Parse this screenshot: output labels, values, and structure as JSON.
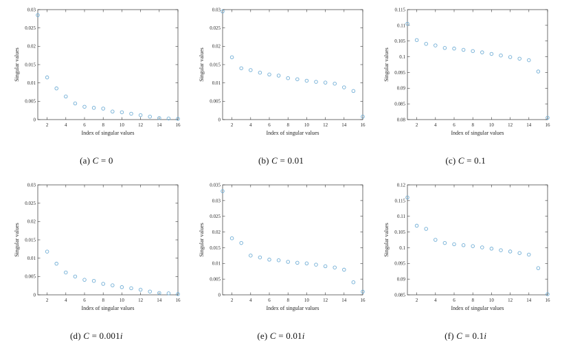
{
  "style": {
    "marker_color": "#6fadd5",
    "axis_color": "#333333",
    "text_color": "#262626",
    "background": "#ffffff"
  },
  "chart_data": [
    {
      "id": "a",
      "type": "scatter",
      "caption": [
        {
          "t": "(a) "
        },
        {
          "t": "C",
          "i": true
        },
        {
          "t": " = 0"
        }
      ],
      "xlabel": "Index of singular values",
      "ylabel": "Singular values",
      "xlim": [
        1,
        16
      ],
      "ylim": [
        0,
        0.03
      ],
      "xticks": [
        2,
        4,
        6,
        8,
        10,
        12,
        14,
        16
      ],
      "yticks": [
        0,
        0.005,
        0.01,
        0.015,
        0.02,
        0.025,
        0.03
      ],
      "ytick_labels": [
        "0",
        "0.005",
        "0.01",
        "0.015",
        "0.02",
        "0.025",
        "0.03"
      ],
      "x": [
        1,
        2,
        3,
        4,
        5,
        6,
        7,
        8,
        9,
        10,
        11,
        12,
        13,
        14,
        15,
        16
      ],
      "y": [
        0.0285,
        0.0115,
        0.0085,
        0.0063,
        0.0044,
        0.0035,
        0.0032,
        0.003,
        0.0022,
        0.002,
        0.0016,
        0.0012,
        0.0008,
        0.0004,
        0.0003,
        0.0002
      ],
      "grid": false,
      "legend": null
    },
    {
      "id": "b",
      "type": "scatter",
      "caption": [
        {
          "t": "(b) "
        },
        {
          "t": "C",
          "i": true
        },
        {
          "t": " = 0.01"
        }
      ],
      "xlabel": "Index of singular values",
      "ylabel": "Singular values",
      "xlim": [
        1,
        16
      ],
      "ylim": [
        0,
        0.03
      ],
      "xticks": [
        2,
        4,
        6,
        8,
        10,
        12,
        14,
        16
      ],
      "yticks": [
        0,
        0.005,
        0.01,
        0.015,
        0.02,
        0.025,
        0.03
      ],
      "ytick_labels": [
        "0",
        "0.005",
        "0.01",
        "0.015",
        "0.02",
        "0.025",
        "0.03"
      ],
      "x": [
        1,
        2,
        3,
        4,
        5,
        6,
        7,
        8,
        9,
        10,
        11,
        12,
        13,
        14,
        15,
        16
      ],
      "y": [
        0.0295,
        0.017,
        0.014,
        0.0135,
        0.0128,
        0.0123,
        0.012,
        0.0113,
        0.011,
        0.0106,
        0.0103,
        0.0101,
        0.0098,
        0.0088,
        0.0078,
        0.0008
      ],
      "grid": false,
      "legend": null
    },
    {
      "id": "c",
      "type": "scatter",
      "caption": [
        {
          "t": "(c) "
        },
        {
          "t": "C",
          "i": true
        },
        {
          "t": " = 0.1"
        }
      ],
      "xlabel": "Index of singular values",
      "ylabel": "Singular values",
      "xlim": [
        1,
        16
      ],
      "ylim": [
        0.08,
        0.115
      ],
      "xticks": [
        2,
        4,
        6,
        8,
        10,
        12,
        14,
        16
      ],
      "yticks": [
        0.08,
        0.085,
        0.09,
        0.095,
        0.1,
        0.105,
        0.11,
        0.115
      ],
      "ytick_labels": [
        "0.08",
        "0.085",
        "0.09",
        "0.095",
        "0.1",
        "0.105",
        "0.11",
        "0.115"
      ],
      "x": [
        1,
        2,
        3,
        4,
        5,
        6,
        7,
        8,
        9,
        10,
        11,
        12,
        13,
        14,
        15,
        16
      ],
      "y": [
        0.1105,
        0.1053,
        0.1041,
        0.1036,
        0.1028,
        0.1026,
        0.1022,
        0.1018,
        0.1014,
        0.1009,
        0.1004,
        0.0999,
        0.0994,
        0.0989,
        0.0953,
        0.0806
      ],
      "grid": false,
      "legend": null
    },
    {
      "id": "d",
      "type": "scatter",
      "caption": [
        {
          "t": "(d) "
        },
        {
          "t": "C",
          "i": true
        },
        {
          "t": " = 0.001"
        },
        {
          "t": "i",
          "i": true
        }
      ],
      "xlabel": "Index of singular values",
      "ylabel": "Singular values",
      "xlim": [
        1,
        16
      ],
      "ylim": [
        0,
        0.03
      ],
      "xticks": [
        2,
        4,
        6,
        8,
        10,
        12,
        14,
        16
      ],
      "yticks": [
        0,
        0.005,
        0.01,
        0.015,
        0.02,
        0.025,
        0.03
      ],
      "ytick_labels": [
        "0",
        "0.005",
        "0.01",
        "0.015",
        "0.02",
        "0.025",
        "0.03"
      ],
      "x": [
        2,
        3,
        4,
        5,
        6,
        7,
        8,
        9,
        10,
        11,
        12,
        13,
        14,
        15,
        16
      ],
      "y": [
        0.0118,
        0.0085,
        0.0061,
        0.005,
        0.0041,
        0.0038,
        0.003,
        0.0026,
        0.0021,
        0.0018,
        0.0014,
        0.0009,
        0.0005,
        0.0004,
        0.0002
      ],
      "grid": false,
      "legend": null
    },
    {
      "id": "e",
      "type": "scatter",
      "caption": [
        {
          "t": "(e) "
        },
        {
          "t": "C",
          "i": true
        },
        {
          "t": " = 0.01"
        },
        {
          "t": "i",
          "i": true
        }
      ],
      "xlabel": "Index of singular values",
      "ylabel": "Singular values",
      "xlim": [
        1,
        16
      ],
      "ylim": [
        0,
        0.035
      ],
      "xticks": [
        2,
        4,
        6,
        8,
        10,
        12,
        14,
        16
      ],
      "yticks": [
        0,
        0.005,
        0.01,
        0.015,
        0.02,
        0.025,
        0.03,
        0.035
      ],
      "ytick_labels": [
        "0",
        "0.005",
        "0.01",
        "0.015",
        "0.02",
        "0.025",
        "0.03",
        "0.035"
      ],
      "x": [
        1,
        2,
        3,
        4,
        5,
        6,
        7,
        8,
        9,
        10,
        11,
        12,
        13,
        14,
        15,
        16
      ],
      "y": [
        0.033,
        0.018,
        0.0165,
        0.0125,
        0.0119,
        0.0112,
        0.011,
        0.0105,
        0.0102,
        0.01,
        0.0096,
        0.0091,
        0.0087,
        0.008,
        0.004,
        0.001
      ],
      "grid": false,
      "legend": null
    },
    {
      "id": "f",
      "type": "scatter",
      "caption": [
        {
          "t": "(f) "
        },
        {
          "t": "C",
          "i": true
        },
        {
          "t": " = 0.1"
        },
        {
          "t": "i",
          "i": true
        }
      ],
      "xlabel": "Index of singular values",
      "ylabel": "Singular values",
      "xlim": [
        1,
        16
      ],
      "ylim": [
        0.085,
        0.12
      ],
      "xticks": [
        2,
        4,
        6,
        8,
        10,
        12,
        14,
        16
      ],
      "yticks": [
        0.085,
        0.09,
        0.095,
        0.1,
        0.105,
        0.11,
        0.115,
        0.12
      ],
      "ytick_labels": [
        "0.085",
        "0.09",
        "0.095",
        "0.1",
        "0.105",
        "0.11",
        "0.115",
        "0.12"
      ],
      "x": [
        1,
        2,
        3,
        4,
        5,
        6,
        7,
        8,
        9,
        10,
        11,
        12,
        13,
        14,
        15,
        16
      ],
      "y": [
        0.116,
        0.107,
        0.106,
        0.1025,
        0.1015,
        0.1011,
        0.1008,
        0.1005,
        0.1001,
        0.0997,
        0.0992,
        0.0988,
        0.0983,
        0.0978,
        0.0935,
        0.0852
      ],
      "grid": false,
      "legend": null
    }
  ]
}
